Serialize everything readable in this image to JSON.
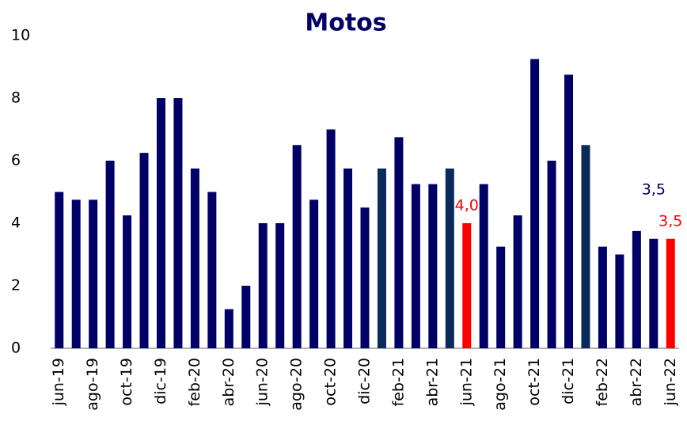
{
  "chart_data": {
    "type": "bar",
    "title": "Motos",
    "categories": [
      "jun-19",
      null,
      "ago-19",
      null,
      "oct-19",
      null,
      "dic-19",
      null,
      "feb-20",
      null,
      "abr-20",
      null,
      "jun-20",
      null,
      "ago-20",
      null,
      "oct-20",
      null,
      "dic-20",
      null,
      "feb-21",
      null,
      "abr-21",
      null,
      "jun-21",
      null,
      "ago-21",
      null,
      "oct-21",
      null,
      "dic-21",
      null,
      "feb-22",
      null,
      "abr-22",
      null,
      "jun-22"
    ],
    "values": [
      5.0,
      4.75,
      4.75,
      6.0,
      4.25,
      6.25,
      8.0,
      8.0,
      5.75,
      5.0,
      1.25,
      2.0,
      4.0,
      4.0,
      6.5,
      4.75,
      7.0,
      5.75,
      4.5,
      5.75,
      6.75,
      5.25,
      5.25,
      5.75,
      4.0,
      5.25,
      3.25,
      4.25,
      9.25,
      6.0,
      8.75,
      6.5,
      3.25,
      3.0,
      3.75,
      3.5,
      3.5
    ],
    "value_labels": [
      null,
      null,
      null,
      null,
      null,
      null,
      null,
      null,
      null,
      null,
      null,
      null,
      null,
      null,
      null,
      null,
      null,
      null,
      null,
      null,
      null,
      null,
      null,
      null,
      "4,0",
      null,
      null,
      null,
      null,
      null,
      null,
      null,
      null,
      null,
      null,
      "3,5",
      "3,5"
    ],
    "colors": [
      "#000066",
      "#000066",
      "#000066",
      "#000066",
      "#000066",
      "#000066",
      "#000066",
      "#000066",
      "#000066",
      "#000066",
      "#000066",
      "#000066",
      "#000066",
      "#000066",
      "#000066",
      "#000066",
      "#000066",
      "#000066",
      "#000066",
      "#0b2a5c",
      "#000066",
      "#000066",
      "#000066",
      "#0b2a5c",
      "#ff0000",
      "#000066",
      "#000066",
      "#000066",
      "#000066",
      "#000066",
      "#000066",
      "#0b2a5c",
      "#000066",
      "#000066",
      "#000066",
      "#000066",
      "#ff0000"
    ],
    "ylim": [
      0,
      10
    ],
    "yticks": [
      0,
      2,
      4,
      6,
      8,
      10
    ],
    "grid": false
  }
}
